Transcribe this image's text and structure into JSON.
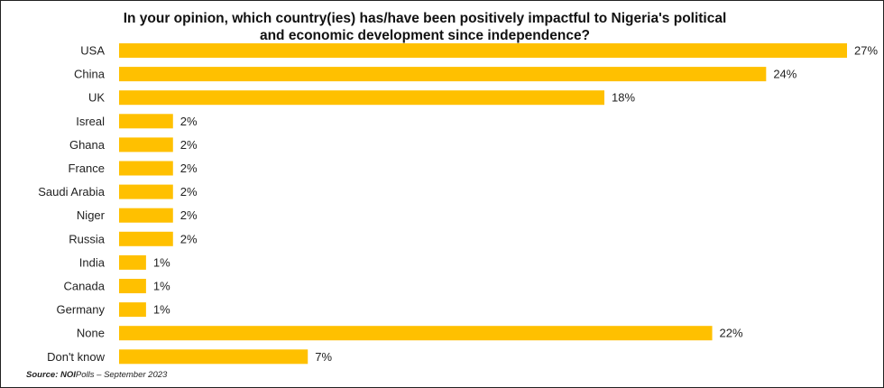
{
  "chart_data": {
    "type": "bar",
    "orientation": "horizontal",
    "title_line1": "In your opinion, which country(ies) has/have been positively impactful to Nigeria's political",
    "title_line2": "and economic development since independence?",
    "categories": [
      "USA",
      "China",
      "UK",
      "Isreal",
      "Ghana",
      "France",
      "Saudi Arabia",
      "Niger",
      "Russia",
      "India",
      "Canada",
      "Germany",
      "None",
      "Don't know"
    ],
    "values": [
      27,
      24,
      18,
      2,
      2,
      2,
      2,
      2,
      2,
      1,
      1,
      1,
      22,
      7
    ],
    "value_labels": [
      "27%",
      "24%",
      "18%",
      "2%",
      "2%",
      "2%",
      "2%",
      "2%",
      "2%",
      "1%",
      "1%",
      "1%",
      "22%",
      "7%"
    ],
    "unit": "%",
    "xlim": [
      0,
      27
    ],
    "bar_color": "#FFC000",
    "grid": false,
    "legend": "none"
  },
  "source": {
    "label": "Source:",
    "org": "NOI",
    "org_rest": "Polls",
    "date": "– September 2023"
  }
}
